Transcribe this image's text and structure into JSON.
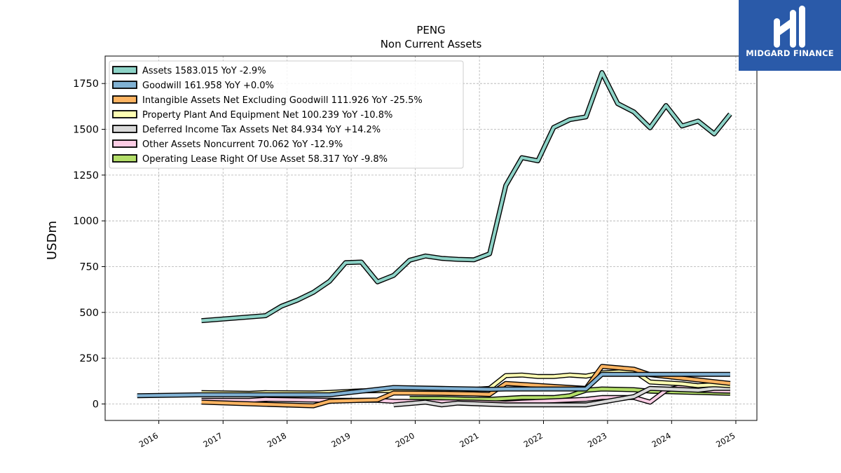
{
  "chart_data": {
    "type": "line",
    "title": "PENG",
    "subtitle": "Non Current  Assets",
    "ylabel": "USDm",
    "xlabel": "",
    "ylim": [
      -90,
      1900
    ],
    "xlim": [
      "2015-03-01",
      "2025-05-01"
    ],
    "yticks": [
      0,
      250,
      500,
      750,
      1000,
      1250,
      1500,
      1750
    ],
    "xticks": [
      "2016",
      "2017",
      "2018",
      "2019",
      "2020",
      "2021",
      "2022",
      "2023",
      "2024",
      "2025"
    ],
    "grid": true,
    "legend_position": "top-left",
    "series": [
      {
        "name": "Assets",
        "legend": "Assets  1583.015 YoY -2.9%",
        "color": "#8dd3c7",
        "points": [
          [
            "2016-08-31",
            455
          ],
          [
            "2017-08-31",
            482
          ],
          [
            "2017-11-30",
            534
          ],
          [
            "2018-02-28",
            567
          ],
          [
            "2018-05-31",
            610
          ],
          [
            "2018-08-31",
            670
          ],
          [
            "2018-11-30",
            772
          ],
          [
            "2019-02-28",
            775
          ],
          [
            "2019-05-31",
            667
          ],
          [
            "2019-08-31",
            702
          ],
          [
            "2019-11-30",
            785
          ],
          [
            "2020-02-29",
            808
          ],
          [
            "2020-05-31",
            795
          ],
          [
            "2020-08-31",
            790
          ],
          [
            "2020-11-30",
            787
          ],
          [
            "2021-02-28",
            820
          ],
          [
            "2021-05-31",
            1193
          ],
          [
            "2021-08-31",
            1345
          ],
          [
            "2021-11-30",
            1328
          ],
          [
            "2022-02-28",
            1510
          ],
          [
            "2022-05-31",
            1553
          ],
          [
            "2022-08-31",
            1568
          ],
          [
            "2022-11-30",
            1810
          ],
          [
            "2023-02-28",
            1640
          ],
          [
            "2023-05-31",
            1595
          ],
          [
            "2023-08-31",
            1508
          ],
          [
            "2023-11-30",
            1630
          ],
          [
            "2024-02-29",
            1518
          ],
          [
            "2024-05-31",
            1545
          ],
          [
            "2024-08-31",
            1475
          ],
          [
            "2024-11-30",
            1583
          ]
        ]
      },
      {
        "name": "Goodwill",
        "legend": "Goodwill  161.958 YoY +0.0%",
        "color": "#80b1d3",
        "points": [
          [
            "2015-08-31",
            45
          ],
          [
            "2016-08-31",
            50
          ],
          [
            "2017-08-31",
            50
          ],
          [
            "2018-08-31",
            50
          ],
          [
            "2019-08-31",
            90
          ],
          [
            "2020-05-31",
            85
          ],
          [
            "2020-11-30",
            82
          ],
          [
            "2021-02-28",
            80
          ],
          [
            "2021-05-31",
            82
          ],
          [
            "2022-08-31",
            82
          ],
          [
            "2022-11-30",
            162
          ],
          [
            "2024-11-30",
            162
          ]
        ]
      },
      {
        "name": "Intangible Assets Net Excluding Goodwill",
        "legend": "Intangible Assets Net Excluding Goodwill  111.926 YoY -25.5%",
        "color": "#fdb462",
        "points": [
          [
            "2016-08-31",
            10
          ],
          [
            "2017-08-31",
            -2
          ],
          [
            "2018-05-31",
            -10
          ],
          [
            "2018-08-31",
            15
          ],
          [
            "2019-05-31",
            22
          ],
          [
            "2019-08-31",
            60
          ],
          [
            "2020-05-31",
            58
          ],
          [
            "2020-11-30",
            55
          ],
          [
            "2021-02-28",
            52
          ],
          [
            "2021-05-31",
            112
          ],
          [
            "2022-08-31",
            85
          ],
          [
            "2022-11-30",
            205
          ],
          [
            "2023-05-31",
            190
          ],
          [
            "2023-08-31",
            160
          ],
          [
            "2024-11-30",
            112
          ]
        ]
      },
      {
        "name": "Property Plant And Equipment Net",
        "legend": "Property Plant And Equipment Net  100.239 YoY -10.8%",
        "color": "#ffffb3",
        "points": [
          [
            "2016-08-31",
            62
          ],
          [
            "2017-05-31",
            58
          ],
          [
            "2017-08-31",
            62
          ],
          [
            "2018-05-31",
            60
          ],
          [
            "2018-08-31",
            63
          ],
          [
            "2019-02-28",
            72
          ],
          [
            "2019-08-31",
            73
          ],
          [
            "2020-02-29",
            70
          ],
          [
            "2020-05-31",
            68
          ],
          [
            "2021-02-28",
            85
          ],
          [
            "2021-05-31",
            155
          ],
          [
            "2021-08-31",
            158
          ],
          [
            "2021-11-30",
            150
          ],
          [
            "2022-02-28",
            150
          ],
          [
            "2022-05-31",
            158
          ],
          [
            "2022-08-31",
            152
          ],
          [
            "2022-11-30",
            170
          ],
          [
            "2023-05-31",
            180
          ],
          [
            "2023-08-31",
            120
          ],
          [
            "2024-02-29",
            110
          ],
          [
            "2024-05-31",
            100
          ],
          [
            "2024-08-31",
            105
          ],
          [
            "2024-11-30",
            100
          ]
        ]
      },
      {
        "name": "Deferred Income Tax Assets Net",
        "legend": "Deferred Income Tax Assets Net  84.934 YoY +14.2%",
        "color": "#d9d9d9",
        "points": [
          [
            "2019-08-31",
            -5
          ],
          [
            "2020-02-29",
            10
          ],
          [
            "2020-05-31",
            -5
          ],
          [
            "2020-08-31",
            5
          ],
          [
            "2021-05-31",
            -5
          ],
          [
            "2022-08-31",
            -5
          ],
          [
            "2023-05-31",
            40
          ],
          [
            "2023-08-31",
            85
          ],
          [
            "2024-05-31",
            75
          ],
          [
            "2024-08-31",
            85
          ],
          [
            "2024-11-30",
            85
          ]
        ]
      },
      {
        "name": "Other Assets Noncurrent",
        "legend": "Other Assets Noncurrent  70.062 YoY -12.9%",
        "color": "#fccde5",
        "points": [
          [
            "2016-08-31",
            20
          ],
          [
            "2017-05-31",
            20
          ],
          [
            "2017-08-31",
            25
          ],
          [
            "2018-08-31",
            20
          ],
          [
            "2019-05-31",
            20
          ],
          [
            "2019-08-31",
            15
          ],
          [
            "2020-05-31",
            12
          ],
          [
            "2020-11-30",
            10
          ],
          [
            "2021-05-31",
            5
          ],
          [
            "2021-08-31",
            10
          ],
          [
            "2022-08-31",
            25
          ],
          [
            "2022-11-30",
            35
          ],
          [
            "2023-05-31",
            35
          ],
          [
            "2023-08-31",
            10
          ],
          [
            "2023-11-30",
            75
          ],
          [
            "2024-02-29",
            95
          ],
          [
            "2024-05-31",
            75
          ],
          [
            "2024-08-31",
            72
          ],
          [
            "2024-11-30",
            70
          ]
        ]
      },
      {
        "name": "Operating Lease Right Of Use Asset",
        "legend": "Operating Lease Right Of Use Asset  58.317 YoY -9.8%",
        "color": "#b3de69",
        "points": [
          [
            "2019-11-30",
            30
          ],
          [
            "2020-05-31",
            30
          ],
          [
            "2020-11-30",
            25
          ],
          [
            "2021-02-28",
            25
          ],
          [
            "2021-08-31",
            35
          ],
          [
            "2022-02-28",
            35
          ],
          [
            "2022-05-31",
            45
          ],
          [
            "2022-08-31",
            75
          ],
          [
            "2022-11-30",
            82
          ],
          [
            "2023-05-31",
            78
          ],
          [
            "2023-08-31",
            70
          ],
          [
            "2024-02-29",
            65
          ],
          [
            "2024-11-30",
            58
          ]
        ]
      }
    ]
  },
  "logo": {
    "text": "MIDGARD FINANCE",
    "bg_color": "#2a5aa9"
  }
}
